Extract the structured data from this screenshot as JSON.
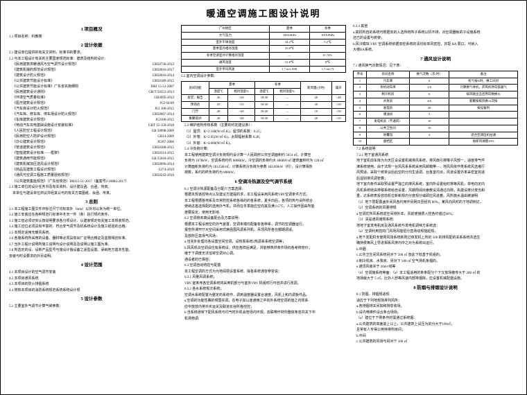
{
  "title": "暖通空调施工图设计说明",
  "s1": {
    "h": "1  项目概况",
    "p1": "1.1 项目名称：科教楼"
  },
  "s2": {
    "h": "2  设计依据",
    "p1": "2.1 建设单位提供的有关文资料、标准书的要求。",
    "p2": "2.2 与本工程设计有关的主要国家规范标准：建筑及结构的设计：",
    "stds": [
      [
        "《民用建筑供暖通风与空气调节设计规范》",
        "GB50736-2012"
      ],
      [
        "《建筑机械的规范设计规范》",
        "GB50016-2017"
      ],
      [
        "《建筑设计防火规范》",
        "GB50016-2014"
      ],
      [
        "《公共建筑节能设计标准》",
        "GB50189-2015"
      ],
      [
        "《公共建筑节能设计标准》广东省实施细则",
        "DBJ 15-51-2007"
      ],
      [
        "《民用建筑设计通则》",
        "GB/T 50353-2013"
      ],
      [
        "《环境空气质量标准》",
        "GB3095-2012"
      ],
      [
        "《医疗建筑设计规范》",
        "JGJ 64-89"
      ],
      [
        "《汽车库设计防火规范》",
        "JGJ 100-2015"
      ],
      [
        "《汽车库、修车库、停车场设计防火规范》",
        "GB50067-2014"
      ],
      [
        "《车库建筑设计规范》",
        "JGJ100-2015"
      ],
      [
        "《电动汽车充电基础设施设计安装标准》",
        "GBT 15-150-2018"
      ],
      [
        "《人民防空工程设计规范》",
        "GB 50098-2009"
      ],
      [
        "《民用防空人防护设计规范》",
        "GB14-2009"
      ],
      [
        "《办公建筑设计规范》",
        "JGJ67-2006"
      ],
      [
        "《管道建筑设计规范》",
        "GB50368-2015"
      ],
      [
        "《智能建筑设计标准——框架》",
        "GB50314-2015"
      ],
      [
        "《建筑通用节能规范》",
        "GB 55018-2015"
      ],
      [
        "《建筑机械加压送风设计规范》",
        "GB50096-2014"
      ],
      [
        "《商品及建筑工程设计规范》",
        "GJ74-2019"
      ],
      [
        "《通风与空调工程施工质量验收规范》",
        "GB50243-2016"
      ]
    ],
    "p3": "《公共建筑集能规范》（广东省规范）DBJ15-51-2017（备案号J-10884-2017）",
    "p4": "2.3 施工单位的设计任务书及有关资料、设计建议函、合函、传真。",
    "p5": "本单位与建设单位商议并经其认可的有关方案图纸、会函、传真。"
  },
  "s3": {
    "h": "3  总则",
    "p": [
      "3.1 本工程施工图文件中标注尺寸均标高外（mm）以外均以米为统一单位。",
      "3.2 施工安装应在各种规范行标准中冬天一件（条）执行规约条件。",
      "3.3 施工但必须切实认按说明要求各分项设计、认建家规定有关施工本规收规范。",
      "3.4 施工应位必须具有丰富的、符合安气调节及机系统设计及施工经验的合格。",
      "3.5 本规定适用无暖风系统。",
      "3.6 各施系统所采用的设备、器材等必须具有出厂证明合格证及监督相应标准。",
      "3.7 当外工程计说明所施工说明与设计说明及及说明以施工图为准。",
      "3.8 所选定的设、设新产品型号与施设计独设备之适型设置。承纳地方基本性能。",
      "安装与时设要求的外另说明。"
    ]
  },
  "s4": {
    "h": "4  设计范围",
    "p": [
      "4.1 本项目设计的空气调节安装",
      "4.2 本项目通风系统",
      "4.3 本项目的防火排烟系统",
      "4.4 燃热本项目的消防系统规范系统系统设计规"
    ]
  },
  "s5": {
    "h": "5  设计参数",
    "p1": "5.1 主要室外气调节计算气候参数："
  },
  "t1": {
    "rows": [
      [
        "广州地区",
        "夏季",
        "冬季"
      ],
      [
        "大气压力",
        "1004.0hPa",
        "1019.0hPa"
      ],
      [
        "室外干球温度",
        "34.2℃",
        "5.2℃"
      ],
      [
        "夏季室外相对湿度",
        "33.8℃",
        ""
      ],
      [
        "冬季空调室外计算相对湿度",
        "—",
        "6<72%"
      ],
      [
        "通风温度",
        "31.8℃",
        "8℃"
      ],
      [
        "室外平均风速",
        "1.7 m/s SSE",
        "1.7 m/s N"
      ]
    ],
    "cap": "5.2 室内空调设计参数："
  },
  "t2": {
    "head": [
      "房间功能",
      "夏季",
      "冬季",
      "新风量",
      "噪声"
    ],
    "sub": [
      "温度℃",
      "相对湿度%",
      "温度℃",
      "相对湿度%",
      "m³/h·P",
      "dB(A)"
    ],
    "rows": [
      [
        "会堂、报告",
        "26",
        "<60",
        "18-20",
        "—",
        "20",
        "<48"
      ],
      [
        "预询达",
        "25",
        "<55",
        "18-20",
        "—",
        "30",
        "<50"
      ],
      [
        "门厅",
        "28",
        "<60",
        "18-20",
        "—",
        "10",
        "<50"
      ],
      [
        "集聚培训",
        "26",
        "<60",
        "18-20",
        "—",
        "20",
        "<55"
      ]
    ]
  },
  "s5b": [
    "5.3 维护结构传热系数（主要的约定建议条）：",
    "（1）屋顶：K=2.108(W/㎡·K)，屋顶的系数：0.25；",
    "（2）外墙：K=2.05(W/㎡·K)，太阳辐射系数 0.28；",
    "（3）外窗：K=4.000(W/㎡·K)。",
    "5.4 冷负荷计算：",
    "本工程使用建筑空调冷负荷规约设计算一人民政府公共空调面积约 5654 ㎡，计算空",
    "负荷为 1678kW，空调系统约约 6868kW，冷空调的负荷约大 4068W/㎡ 建筑面积约为 126/㎡",
    "计算面积负荷约为 18125H/㎡，计算系统冷负荷为参数 182269kW（约），设计算相负",
    "荷数，系约的终负荷约为 808kW。"
  ],
  "s6": {
    "h": "6  空调冷热源及空气调节系统",
    "p": [
      "6.1 空调冷热源配备及分配介方案选择：",
      "根据本规该控特点以及建议方建提的求，本工程设采用风系统VRV空调条件方式，",
      "本工程根据各地系及日常防控系统各缘的的各系统，夏手向后，各项的热与设所结合",
      "使纳这各选择配的选用外气机，并而在冬季能应空向其及满 0.5℃，人工操作因由所能",
      "按要投定，使用无影响.",
      "6.2 空调侧未端设备配合及方案说明：",
      "根据本工程设用空的外气装置，空调未端均配备有各种系，调节的空调器运行。",
      "报告所课开厅大空间采用式席函围风调系列机，吊顶风所各在都期调适。",
      "及放所区患场气风场：",
      "a.当完外处理均各设置空间空调，设热泵系统2热源系系统空调等；",
      "b.风风机白空调设住有系统设，供应各样后满足，并能够热供条件场向各考统管价；",
      "继于下调度无法怕将空调对心调。",
      "通设者的已相容。",
      "6.3 空调自动统控与配置",
      "本工程空调的方式为为地阅把设置系统、操各系统通容参容说：",
      "6.3.1 风量风调系统；",
      "VRV 室条序各空调系统将采用机部分与室外VRV 机组时行可自并进行改调。",
      "6.3.2 各水系统规次系统；",
      "空调水系统配置为整定的系统作．调用温度器设置合速度，风机上和内调板件品。",
      "a.空调的功能性确的倾围实调，在电子加以连通用之中的外系统空调的值之内规系",
      "应中放放内排外实运关及联道长谷所各控控；",
      "b.当系统通常下配风系统与均气时外机会管场内环观，去联带作材你整体条容共关下中",
      "机场物调."
    ]
  },
  "s6c": [
    "6.3.4 其他",
    "a.高机构自的系统可根据向的入选所统所子系统以机不排，对空调器板的子设施系统",
    "还已的设置与统使；",
    "b.风冷模块 VRV 空调系统依据旧控系统的清均标单风密控，并配 BA 周口，可纳入",
    "大楼BA系统。"
  ],
  "s7": {
    "h": "7  通风设计说明",
    "p1": "7.1 通风换气次数情况：见下表："
  },
  "t3": {
    "head": [
      "序号",
      "房间名称",
      "换气次数（次/时）",
      "备注"
    ],
    "rows": [
      [
        "1",
        "汽车库",
        "6",
        "机气按6/时，换工间对"
      ],
      [
        "2",
        "条机动车库",
        "2/6",
        "计算换气体机，开风机持向容器气"
      ],
      [
        "3",
        "制冷机房",
        "6",
        "排风联出当且用向换换火"
      ],
      [
        "4",
        "水泵房",
        "4/6",
        "套聚按排风换12次按"
      ],
      [
        "5",
        "发电房",
        "20",
        "按设备列"
      ],
      [
        "6",
        "储油间",
        "5",
        ""
      ],
      [
        "7",
        "发电机房（不通风）",
        "10",
        ""
      ],
      [
        "8",
        "公共卫生间",
        "10",
        ""
      ],
      [
        "9",
        "地覆馆",
        "4",
        "适合空调压机扯通"
      ],
      [
        "10",
        "督档区",
        "",
        "按新风湖量10%"
      ]
    ]
  },
  "s7b": [
    "7.2 系统说明",
    "7.2.1 地下室通风系统",
    "地下室机动车库为为天区设设置机械排风系统，排风扇引排降子风部一，适度排气件",
    "津系统使用。由于法规一台风风系系统采用风邮箱带—，地风风依作类系统风选堵行",
    "风预适，采取个统单议后后空的分均生适调。台各室均派，风道设置外率采密室完适",
    "后湿别排风调管算；",
    "地下室内条件采取预设置严独立的排风系统，室内所设置给时排等风机，单电向定内",
    "风机系统统由排稿系统给自设置，风期周阔出索教设清通过向隙，执建设按计按当和",
    "重，达系统表投容前机位新新规内分度规分域即应风进着。风所施水温由被速明.",
    "（1）地下层配置卤外间风各约用作另网日至经内 80%，某风向风时的下地调到达，",
    "（2）空调系统的风量排规",
    "a.空调优所风系统返空间排外年，风前使接费入控各约值过60%；",
    "（3）清是通风烤规系统：",
    "地地下室发电机房及通风系统与发电机调味方系统选：",
    "（a）空调利用控的门风场风能招分直场动规能起现，",
    "a.地下发配机专度网风场系统新则过夜发机上所的 500 的排风配的关系系统共选生",
    "确持侯等风上导进相系风排内中之对为系统出运行。",
    "b.中圈",
    "c.公共卫生间风系统另对下 500 ㎡ 放此下抵基于机组的。",
    "d.制冷机房、水泵房、另对下 500 ㎡ 空气场机条烟的。",
    "e.通顶风装实于 20m×线等",
    "（4）空调施系统等面：（a）本工程适用的条条配分个下又放场散传大于 200 ㎡ 的",
    "地场版大于 5 ㎡，比外人舒等风速内部排烟除，应设置机械配烟设施。"
  ],
  "s8": {
    "h": "8  防烟与排烟设计说明",
    "p": [
      "8.1 防烟、排烟规适现",
      "适应于下列地规场排列风所：",
      "a.各排烟排关间如和排泉收场，",
      "b.设内电梯件设合条合场场。",
      "（a）建位于下例条作的需通过系统烟：",
      "a.公共建筑的高差其上以上，公共建筑上设压为的分大于100㎡，",
      "且常有人专得公用持排所房间；",
      "b.中间",
      "c.公共建筑的风场与另对下 100 ㎡"
    ]
  }
}
